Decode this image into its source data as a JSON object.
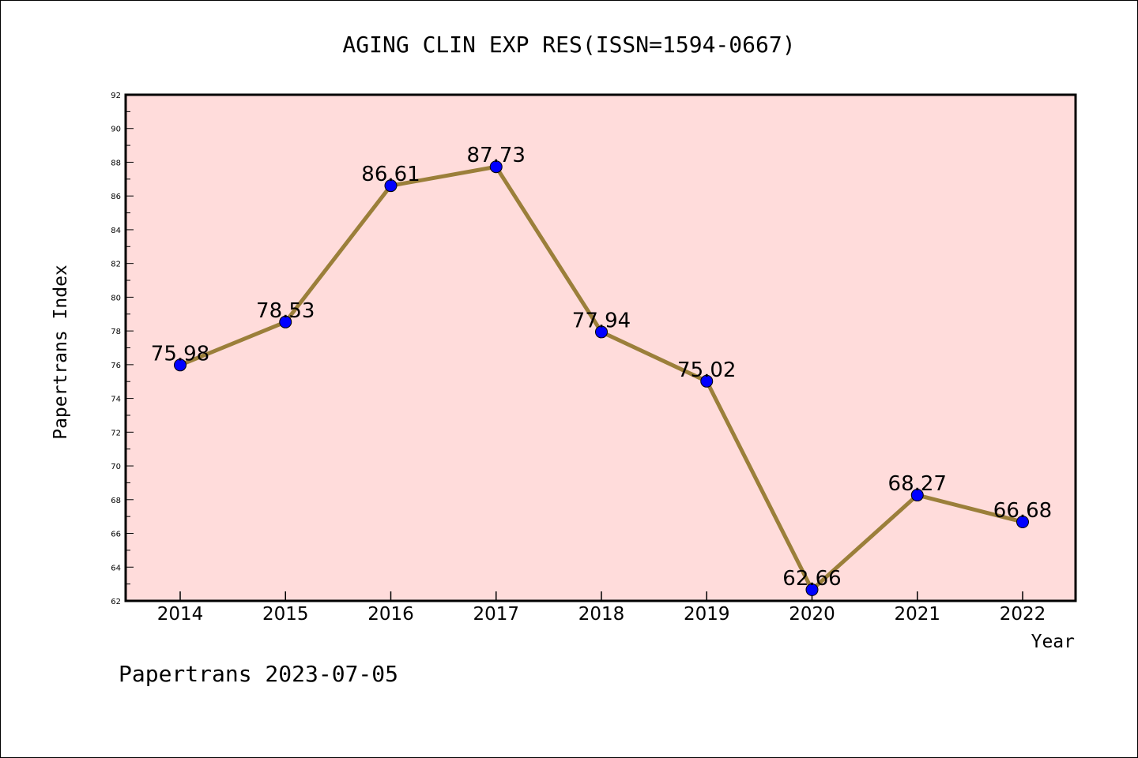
{
  "chart_data": {
    "type": "line",
    "title": "AGING CLIN EXP RES(ISSN=1594-0667)",
    "xlabel": "Year",
    "ylabel": "Papertrans Index",
    "categories": [
      "2014",
      "2015",
      "2016",
      "2017",
      "2018",
      "2019",
      "2020",
      "2021",
      "2022"
    ],
    "series": [
      {
        "values": [
          75.98,
          78.53,
          86.61,
          87.73,
          77.94,
          75.02,
          62.66,
          68.27,
          66.68
        ],
        "labels": [
          "75.98",
          "78.53",
          "86.61",
          "87.73",
          "77.94",
          "75.02",
          "62.66",
          "68.27",
          "66.68"
        ],
        "line_color": "#9b7f3a",
        "marker_color": "#0000ff"
      }
    ],
    "ylim": [
      62,
      92
    ],
    "yticks": [
      "62",
      "64",
      "66",
      "68",
      "70",
      "72",
      "74",
      "76",
      "78",
      "80",
      "82",
      "84",
      "86",
      "88",
      "90",
      "92"
    ],
    "plot_background": "#ffdcdb",
    "grid": false,
    "legend": "none"
  },
  "footer": "Papertrans 2023-07-05"
}
